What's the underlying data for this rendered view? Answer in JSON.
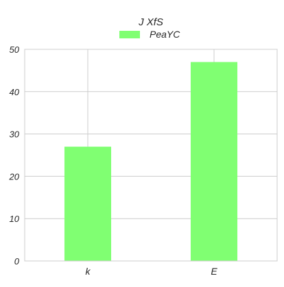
{
  "chart_data": {
    "type": "bar",
    "title": "J XfS",
    "categories": [
      "k",
      "E"
    ],
    "series": [
      {
        "name": "PeaYC",
        "values": [
          27,
          47
        ],
        "color": "#80ff72"
      }
    ],
    "ylim": [
      0,
      50
    ],
    "yticks": [
      0,
      10,
      20,
      30,
      40,
      50
    ],
    "grid": true,
    "legend_position": "top-center",
    "xlabel": "",
    "ylabel": ""
  }
}
